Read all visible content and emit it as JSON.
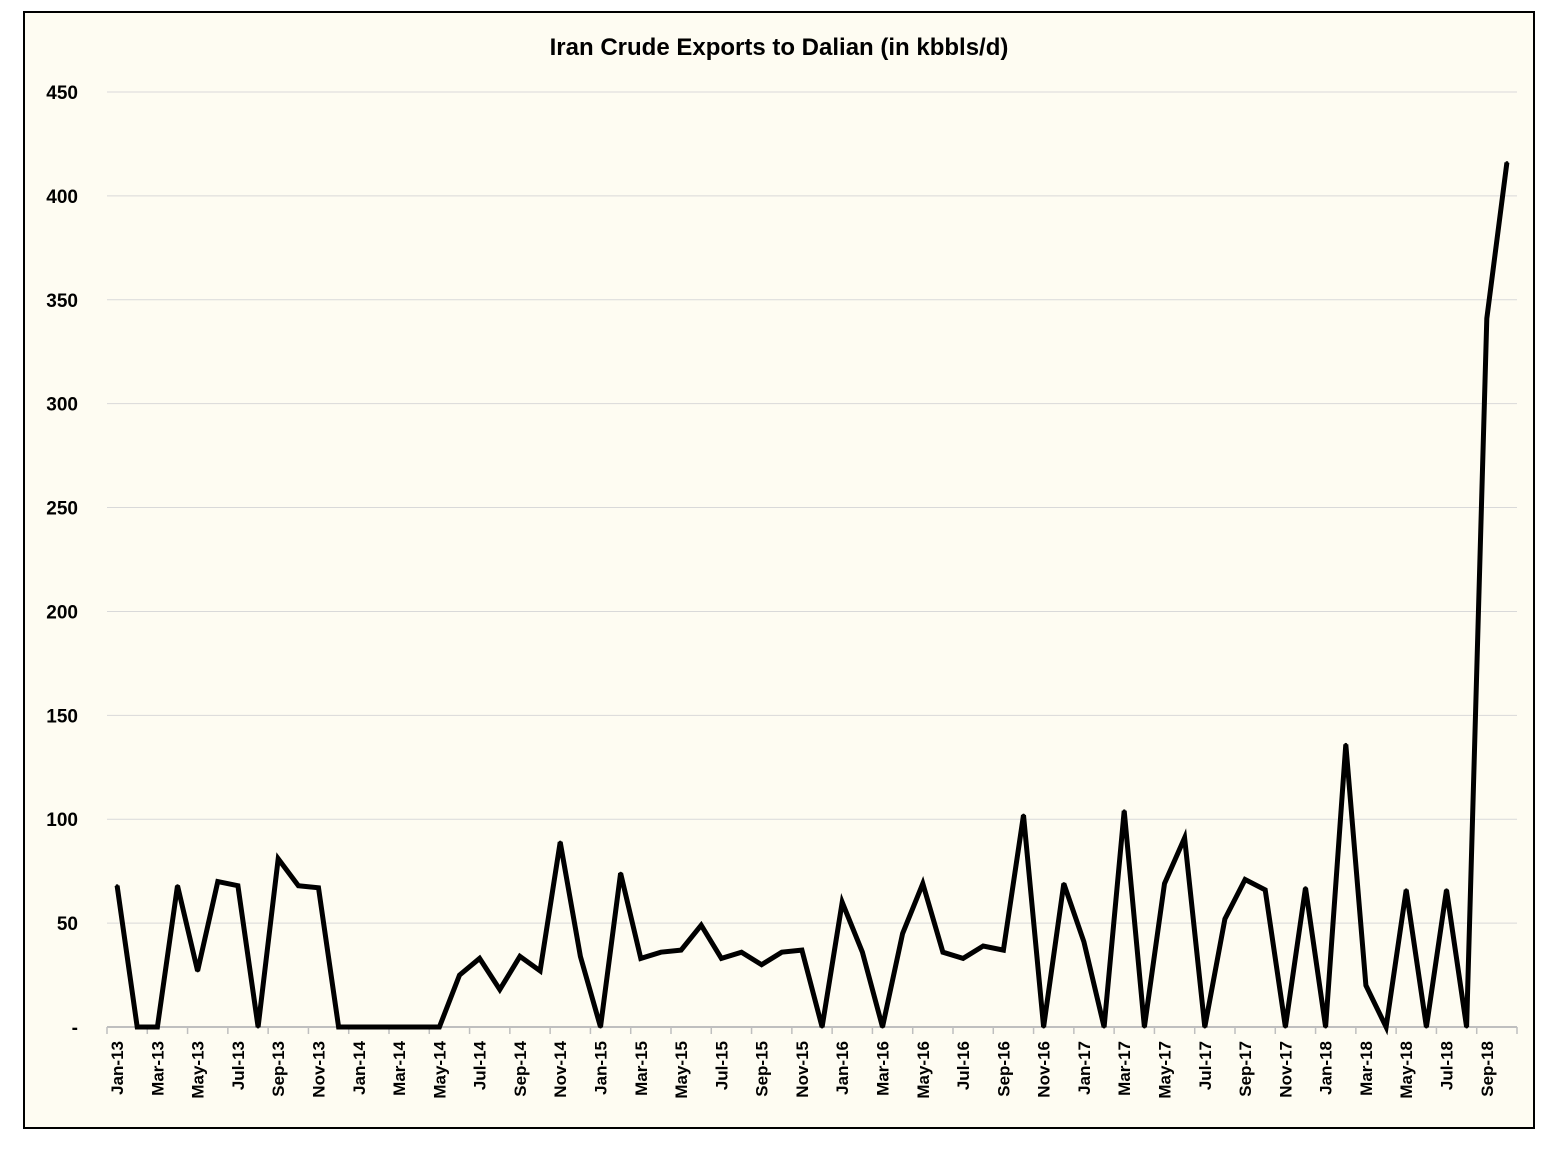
{
  "colors": {
    "background": "#fefcf2",
    "line": "#000000",
    "grid": "#d9d9d9",
    "axis": "#bfbfbf",
    "border": "#000000"
  },
  "chart_data": {
    "type": "line",
    "title": "Iran Crude Exports to Dalian (in kbbls/d)",
    "xlabel": "",
    "ylabel": "",
    "ylim": [
      0,
      450
    ],
    "grid": true,
    "legend": "none",
    "yticks": [
      {
        "value": 450,
        "label": "450"
      },
      {
        "value": 400,
        "label": "400"
      },
      {
        "value": 350,
        "label": "350"
      },
      {
        "value": 300,
        "label": "300"
      },
      {
        "value": 250,
        "label": "250"
      },
      {
        "value": 200,
        "label": "200"
      },
      {
        "value": 150,
        "label": "150"
      },
      {
        "value": 100,
        "label": "100"
      },
      {
        "value": 50,
        "label": "50"
      },
      {
        "value": 0,
        "label": "-"
      }
    ],
    "categories": [
      "Jan-13",
      "Feb-13",
      "Mar-13",
      "Apr-13",
      "May-13",
      "Jun-13",
      "Jul-13",
      "Aug-13",
      "Sep-13",
      "Oct-13",
      "Nov-13",
      "Dec-13",
      "Jan-14",
      "Feb-14",
      "Mar-14",
      "Apr-14",
      "May-14",
      "Jun-14",
      "Jul-14",
      "Aug-14",
      "Sep-14",
      "Oct-14",
      "Nov-14",
      "Dec-14",
      "Jan-15",
      "Feb-15",
      "Mar-15",
      "Apr-15",
      "May-15",
      "Jun-15",
      "Jul-15",
      "Aug-15",
      "Sep-15",
      "Oct-15",
      "Nov-15",
      "Dec-15",
      "Jan-16",
      "Feb-16",
      "Mar-16",
      "Apr-16",
      "May-16",
      "Jun-16",
      "Jul-16",
      "Aug-16",
      "Sep-16",
      "Oct-16",
      "Nov-16",
      "Dec-16",
      "Jan-17",
      "Feb-17",
      "Mar-17",
      "Apr-17",
      "May-17",
      "Jun-17",
      "Jul-17",
      "Aug-17",
      "Sep-17",
      "Oct-17",
      "Nov-17",
      "Dec-17",
      "Jan-18",
      "Feb-18",
      "Mar-18",
      "Apr-18",
      "May-18",
      "Jun-18",
      "Jul-18",
      "Aug-18",
      "Sep-18",
      "Oct-18"
    ],
    "tick_labels": [
      "Jan-13",
      "Mar-13",
      "May-13",
      "Jul-13",
      "Sep-13",
      "Nov-13",
      "Jan-14",
      "Mar-14",
      "May-14",
      "Jul-14",
      "Sep-14",
      "Nov-14",
      "Jan-15",
      "Mar-15",
      "May-15",
      "Jul-15",
      "Sep-15",
      "Nov-15",
      "Jan-16",
      "Mar-16",
      "May-16",
      "Jul-16",
      "Sep-16",
      "Nov-16",
      "Jan-17",
      "Mar-17",
      "May-17",
      "Jul-17",
      "Sep-17",
      "Nov-17",
      "Jan-18",
      "Mar-18",
      "May-18",
      "Jul-18",
      "Sep-18"
    ],
    "series": [
      {
        "values": [
          68,
          0,
          0,
          68,
          27,
          70,
          68,
          0,
          81,
          68,
          67,
          0,
          0,
          0,
          0,
          0,
          0,
          25,
          33,
          18,
          34,
          27,
          89,
          34,
          0,
          74,
          33,
          36,
          37,
          49,
          33,
          36,
          30,
          36,
          37,
          0,
          60,
          36,
          0,
          45,
          69,
          36,
          33,
          39,
          37,
          102,
          0,
          69,
          41,
          0,
          104,
          0,
          69,
          91,
          0,
          52,
          71,
          66,
          0,
          67,
          0,
          136,
          20,
          0,
          66,
          0,
          66,
          0,
          341,
          416
        ]
      }
    ]
  }
}
